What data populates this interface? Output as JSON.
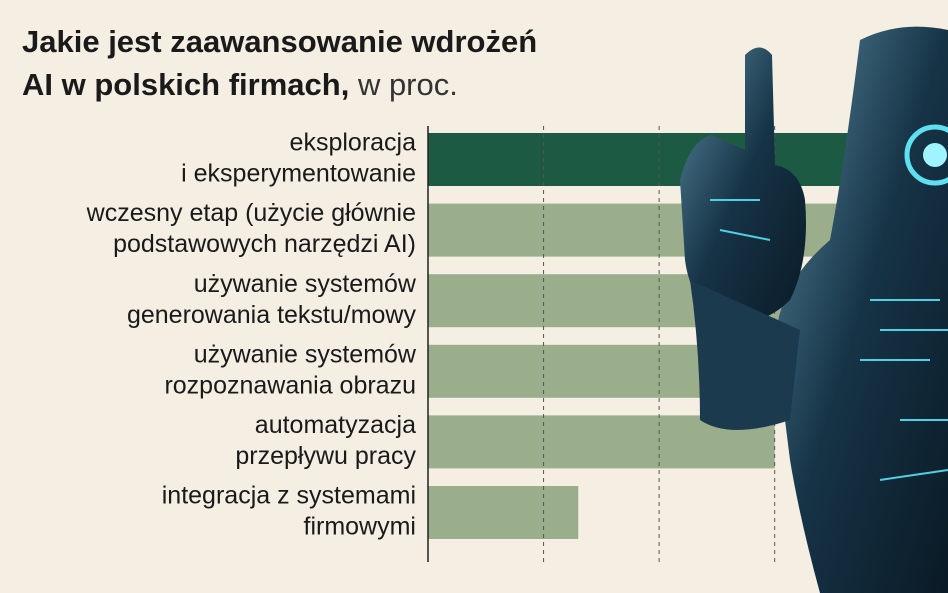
{
  "chart_data": {
    "type": "bar",
    "orientation": "horizontal",
    "title": [
      "Jakie jest zaawansowanie wdrożeń",
      "AI w polskich firmach,"
    ],
    "subtitle": "w proc.",
    "categories": [
      [
        "eksploracja",
        "i eksperymentowanie"
      ],
      [
        "wczesny etap (użycie głównie",
        "podstawowych narzędzi AI)"
      ],
      [
        "używanie systemów",
        "generowania tekstu/mowy"
      ],
      [
        "używanie systemów",
        "rozpoznawania obrazu"
      ],
      [
        "automatyzacja",
        "przepływu pracy"
      ],
      [
        "integracja z systemami",
        "firmowymi"
      ]
    ],
    "values": [
      48,
      44,
      38,
      34,
      30,
      13
    ],
    "colors": [
      "#1d5a43",
      "#9bae8c",
      "#9bae8c",
      "#9bae8c",
      "#9bae8c",
      "#9bae8c"
    ],
    "xlim": [
      0,
      45
    ],
    "xticks": [
      10,
      20,
      30
    ],
    "grid": true
  }
}
